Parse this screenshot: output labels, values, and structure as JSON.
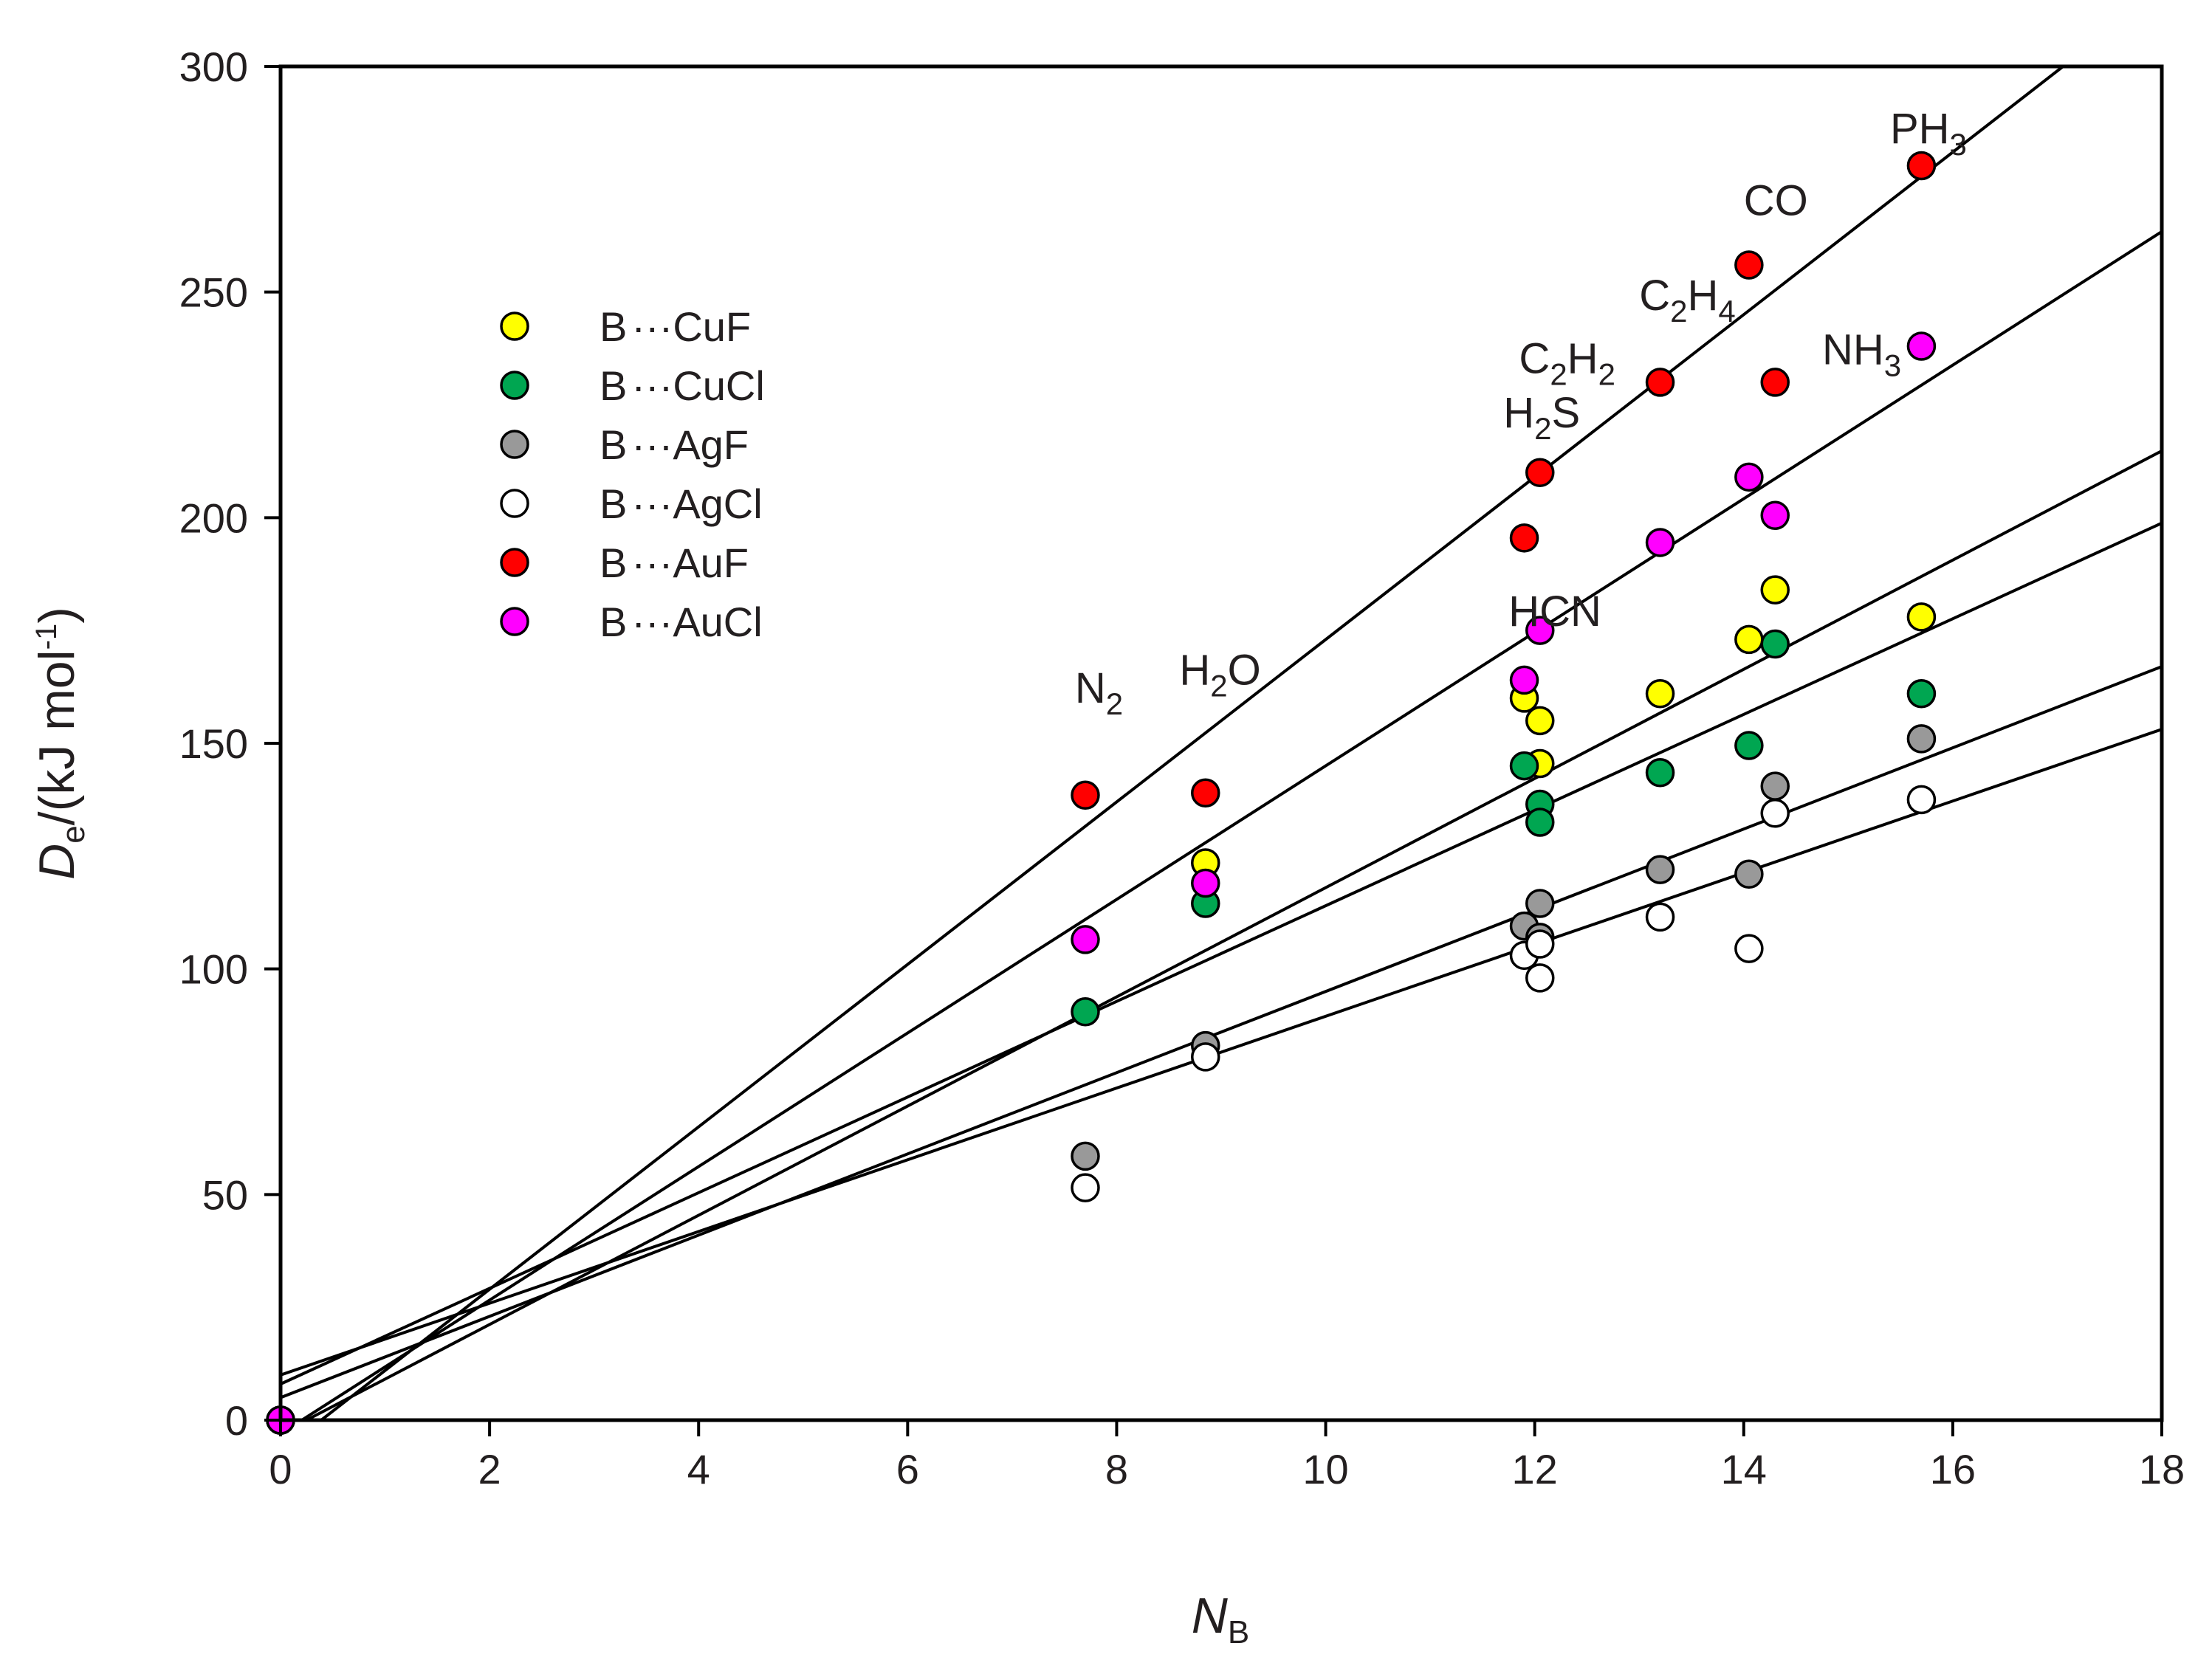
{
  "chart_data": {
    "type": "scatter",
    "xlabel": {
      "main": "N",
      "sub": "B"
    },
    "ylabel": {
      "main": "D",
      "sub": "e",
      "unit_prefix": "/(kJ mol",
      "unit_sup": "-1",
      "unit_suffix": ")"
    },
    "xlim": [
      0,
      18
    ],
    "ylim": [
      0,
      300
    ],
    "xticks": [
      "0",
      "2",
      "4",
      "6",
      "8",
      "10",
      "12",
      "14",
      "16",
      "18"
    ],
    "yticks": [
      "0",
      "50",
      "100",
      "150",
      "200",
      "250",
      "300"
    ],
    "legend_position": "upper-left",
    "series": [
      {
        "name": "B···CuF",
        "prefix": "B",
        "suffix": "CuF",
        "color": "#ffff00",
        "fit": {
          "slope": 12.1,
          "intercept": -3
        },
        "points": [
          [
            0,
            0
          ],
          [
            8.85,
            123.5
          ],
          [
            11.9,
            160
          ],
          [
            12.05,
            155
          ],
          [
            12.05,
            145.5
          ],
          [
            13.2,
            161
          ],
          [
            14.05,
            173
          ],
          [
            14.3,
            184
          ],
          [
            15.7,
            178
          ]
        ]
      },
      {
        "name": "B···CuCl",
        "prefix": "B",
        "suffix": "CuCl",
        "color": "#00a651",
        "fit": {
          "slope": 10.6,
          "intercept": 8
        },
        "points": [
          [
            0,
            0
          ],
          [
            7.7,
            90.5
          ],
          [
            8.85,
            114.5
          ],
          [
            11.9,
            145
          ],
          [
            12.05,
            136.5
          ],
          [
            12.05,
            132.5
          ],
          [
            13.2,
            143.5
          ],
          [
            14.05,
            149.5
          ],
          [
            14.3,
            172
          ],
          [
            15.7,
            161
          ]
        ]
      },
      {
        "name": "B···AgF",
        "prefix": "B",
        "suffix": "AgF",
        "color": "#999999",
        "fit": {
          "slope": 9.0,
          "intercept": 5
        },
        "points": [
          [
            0,
            0
          ],
          [
            7.7,
            58.5
          ],
          [
            8.85,
            83
          ],
          [
            11.9,
            109.5
          ],
          [
            12.05,
            114.5
          ],
          [
            12.05,
            107
          ],
          [
            13.2,
            122
          ],
          [
            14.05,
            121
          ],
          [
            14.3,
            140.5
          ],
          [
            15.7,
            151
          ]
        ]
      },
      {
        "name": "B···AgCl",
        "prefix": "B",
        "suffix": "AgCl",
        "color": "#ffffff",
        "fit": {
          "slope": 7.95,
          "intercept": 10
        },
        "points": [
          [
            0,
            0
          ],
          [
            7.7,
            51.5
          ],
          [
            8.85,
            80.5
          ],
          [
            11.9,
            103
          ],
          [
            12.05,
            105.5
          ],
          [
            12.05,
            98
          ],
          [
            13.2,
            111.5
          ],
          [
            14.05,
            104.5
          ],
          [
            14.3,
            134.5
          ],
          [
            15.7,
            137.5
          ]
        ]
      },
      {
        "name": "B···AuF",
        "prefix": "B",
        "suffix": "AuF",
        "color": "#ff0000",
        "fit": {
          "slope": 18.0,
          "intercept": -7
        },
        "points": [
          [
            0,
            0
          ],
          [
            7.7,
            138.5
          ],
          [
            8.85,
            139
          ],
          [
            11.9,
            195.5
          ],
          [
            12.05,
            210
          ],
          [
            13.2,
            230
          ],
          [
            14.05,
            256
          ],
          [
            14.3,
            230
          ],
          [
            15.7,
            278
          ]
        ]
      },
      {
        "name": "B···AuCl",
        "prefix": "B",
        "suffix": "AuCl",
        "color": "#ff00ff",
        "fit": {
          "slope": 14.8,
          "intercept": -3
        },
        "points": [
          [
            0,
            0
          ],
          [
            7.7,
            106.5
          ],
          [
            8.85,
            119
          ],
          [
            11.9,
            164
          ],
          [
            12.05,
            175
          ],
          [
            13.2,
            194.5
          ],
          [
            14.05,
            209
          ],
          [
            14.3,
            200.5
          ],
          [
            15.7,
            238
          ]
        ]
      }
    ],
    "annotations": [
      {
        "id": "n2",
        "x": 7.6,
        "y": 159,
        "parts": [
          [
            "N",
            ""
          ],
          [
            "2",
            "sub"
          ]
        ]
      },
      {
        "id": "h2o",
        "x": 8.6,
        "y": 163,
        "parts": [
          [
            "H",
            ""
          ],
          [
            "2",
            "sub"
          ],
          [
            "O",
            ""
          ]
        ]
      },
      {
        "id": "hcn",
        "x": 11.75,
        "y": 176,
        "parts": [
          [
            "HCN",
            ""
          ]
        ]
      },
      {
        "id": "h2s",
        "x": 11.7,
        "y": 220,
        "parts": [
          [
            "H",
            ""
          ],
          [
            "2",
            "sub"
          ],
          [
            "S",
            ""
          ]
        ]
      },
      {
        "id": "c2h2",
        "x": 11.85,
        "y": 232,
        "parts": [
          [
            "C",
            ""
          ],
          [
            "2",
            "sub"
          ],
          [
            "H",
            ""
          ],
          [
            "2",
            "sub"
          ]
        ]
      },
      {
        "id": "c2h4",
        "x": 13.0,
        "y": 246,
        "parts": [
          [
            "C",
            ""
          ],
          [
            "2",
            "sub"
          ],
          [
            "H",
            ""
          ],
          [
            "4",
            "sub"
          ]
        ]
      },
      {
        "id": "co",
        "x": 14.0,
        "y": 267,
        "parts": [
          [
            "CO",
            ""
          ]
        ]
      },
      {
        "id": "nh3",
        "x": 14.75,
        "y": 234,
        "parts": [
          [
            "NH",
            ""
          ],
          [
            "3",
            "sub"
          ]
        ]
      },
      {
        "id": "ph3",
        "x": 15.4,
        "y": 283,
        "parts": [
          [
            "PH",
            ""
          ],
          [
            "3",
            "sub"
          ]
        ]
      }
    ]
  }
}
